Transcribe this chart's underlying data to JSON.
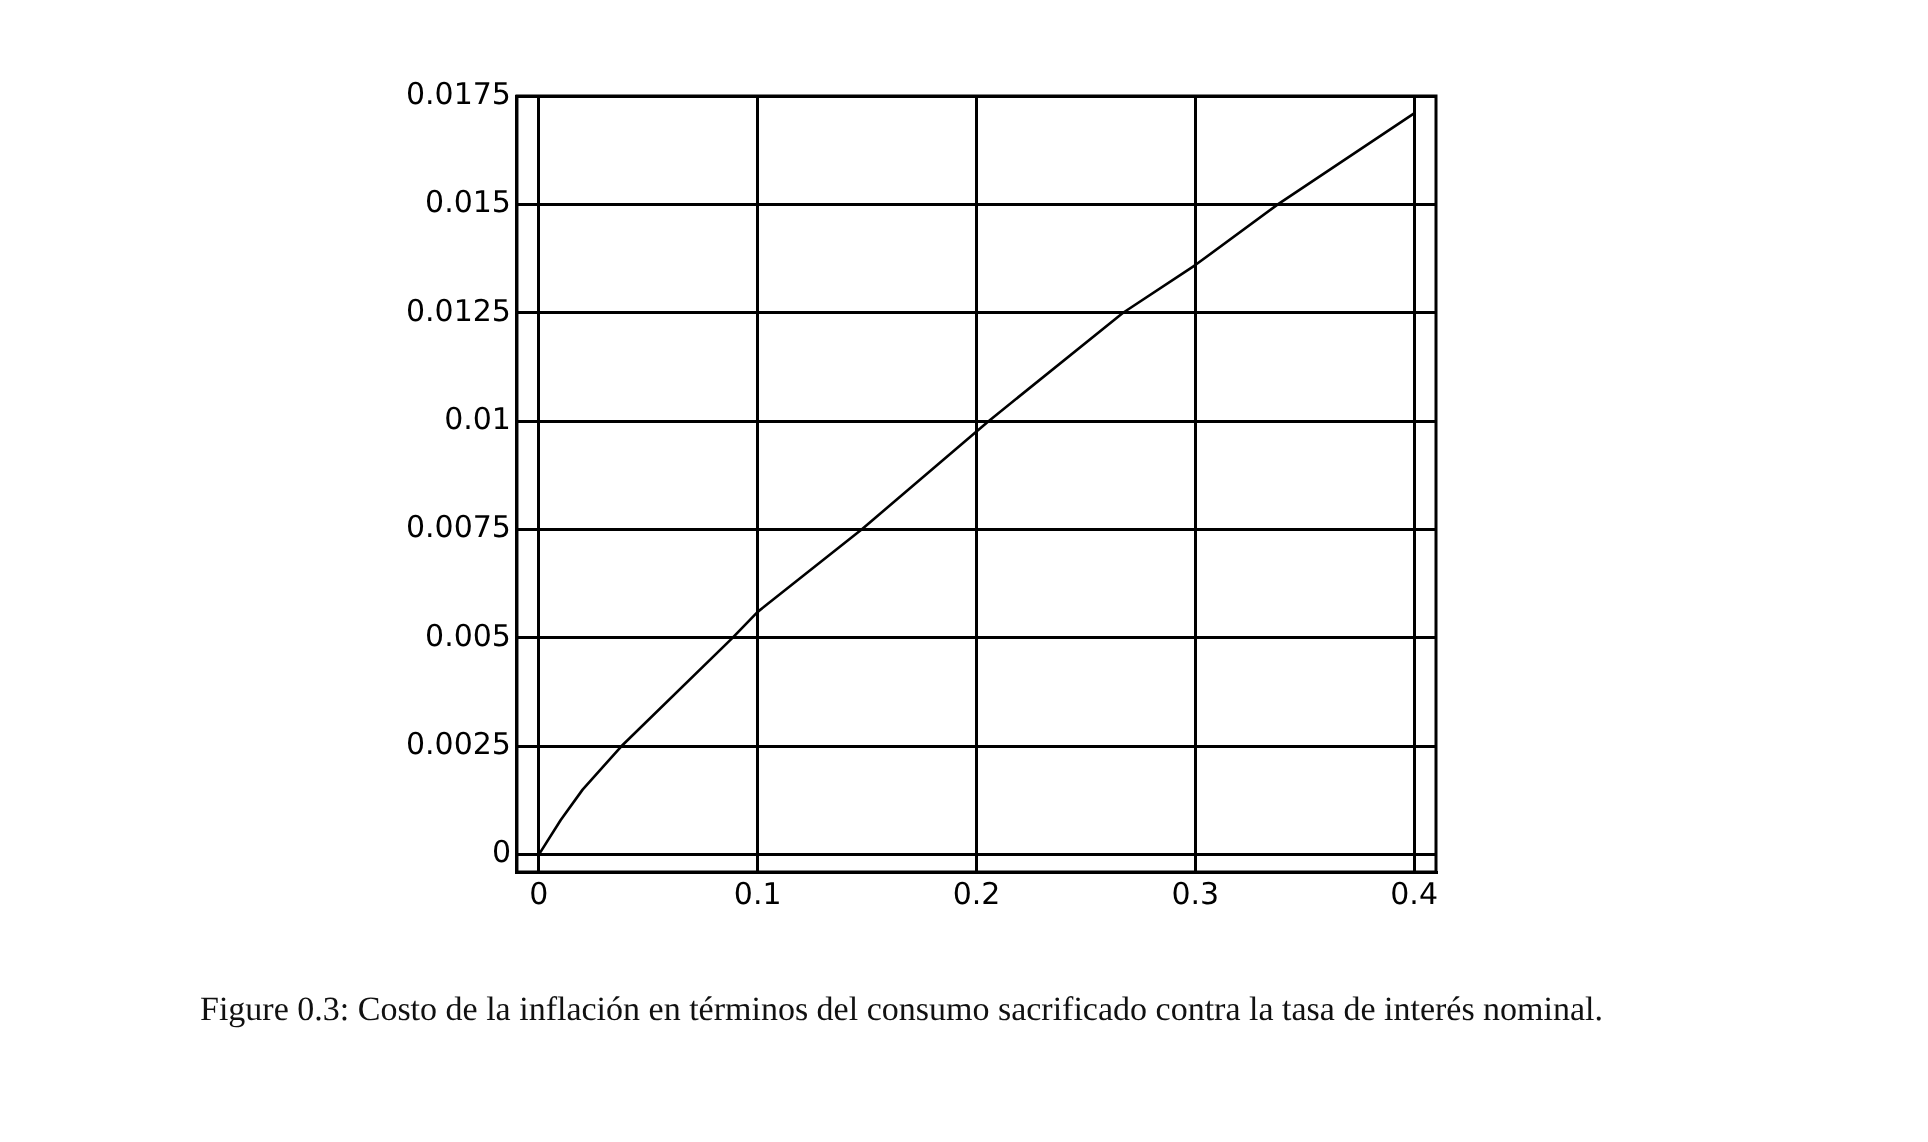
{
  "chart_data": {
    "type": "line",
    "x": [
      0,
      0.01,
      0.02,
      0.0377,
      0.0885,
      0.1,
      0.1475,
      0.2055,
      0.267,
      0.3,
      0.3377,
      0.4
    ],
    "series": [
      {
        "color": "#000000",
        "values": [
          0,
          0.0008,
          0.0015,
          0.0025,
          0.005,
          0.0056,
          0.0075,
          0.01,
          0.0125,
          0.0136,
          0.015,
          0.0171
        ]
      }
    ],
    "xlim": [
      -0.01,
      0.41
    ],
    "xticks": [
      0,
      0.1,
      0.2,
      0.3,
      0.4
    ],
    "ylim": [
      -0.0004,
      0.0175
    ],
    "yticks": [
      0,
      0.0025,
      0.005,
      0.0075,
      0.01,
      0.0125,
      0.015,
      0.0175
    ],
    "grid": true,
    "legend": false,
    "marker": "none",
    "line_style": "solid",
    "annotations": [
      "Figure 0.3: Costo de la inflación en términos del consumo sacrificado contra la tasa de interés nominal."
    ]
  }
}
